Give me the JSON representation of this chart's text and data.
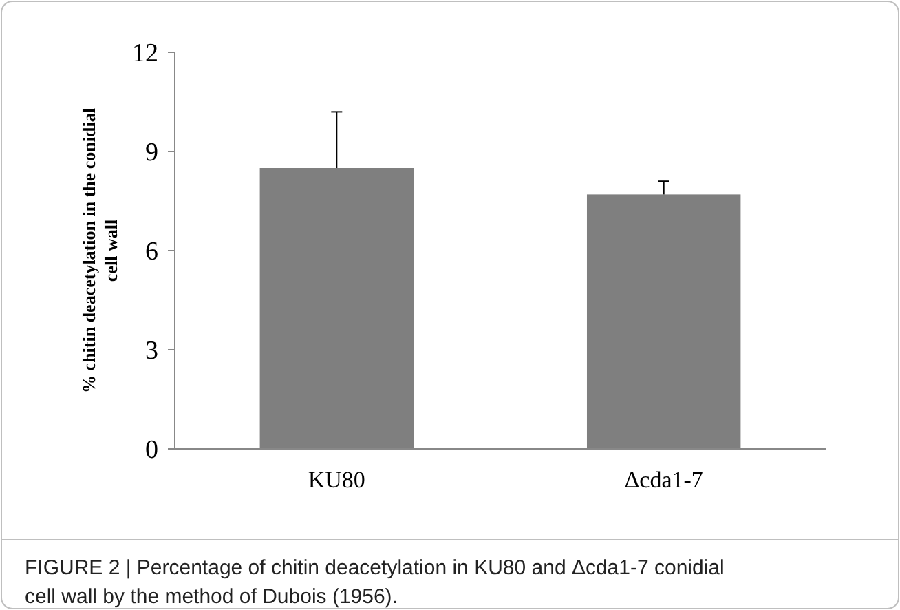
{
  "chart_data": {
    "type": "bar",
    "categories": [
      "KU80",
      "Δcda1-7"
    ],
    "values": [
      8.5,
      7.7
    ],
    "errors": [
      [
        8.5,
        10.2
      ],
      [
        7.7,
        8.1
      ]
    ],
    "color": "#7f7f7f",
    "ylabel": "% chitin deacetylation in the conidial cell wall",
    "ylim": [
      0,
      12
    ],
    "yticks": [
      0,
      3,
      6,
      9,
      12
    ],
    "annotations": [
      "FIGURE 2 | Percentage of chitin deacetylation in KU80 and Δcda1-7 conidial cell wall by the method of Dubois (1956)."
    ]
  }
}
